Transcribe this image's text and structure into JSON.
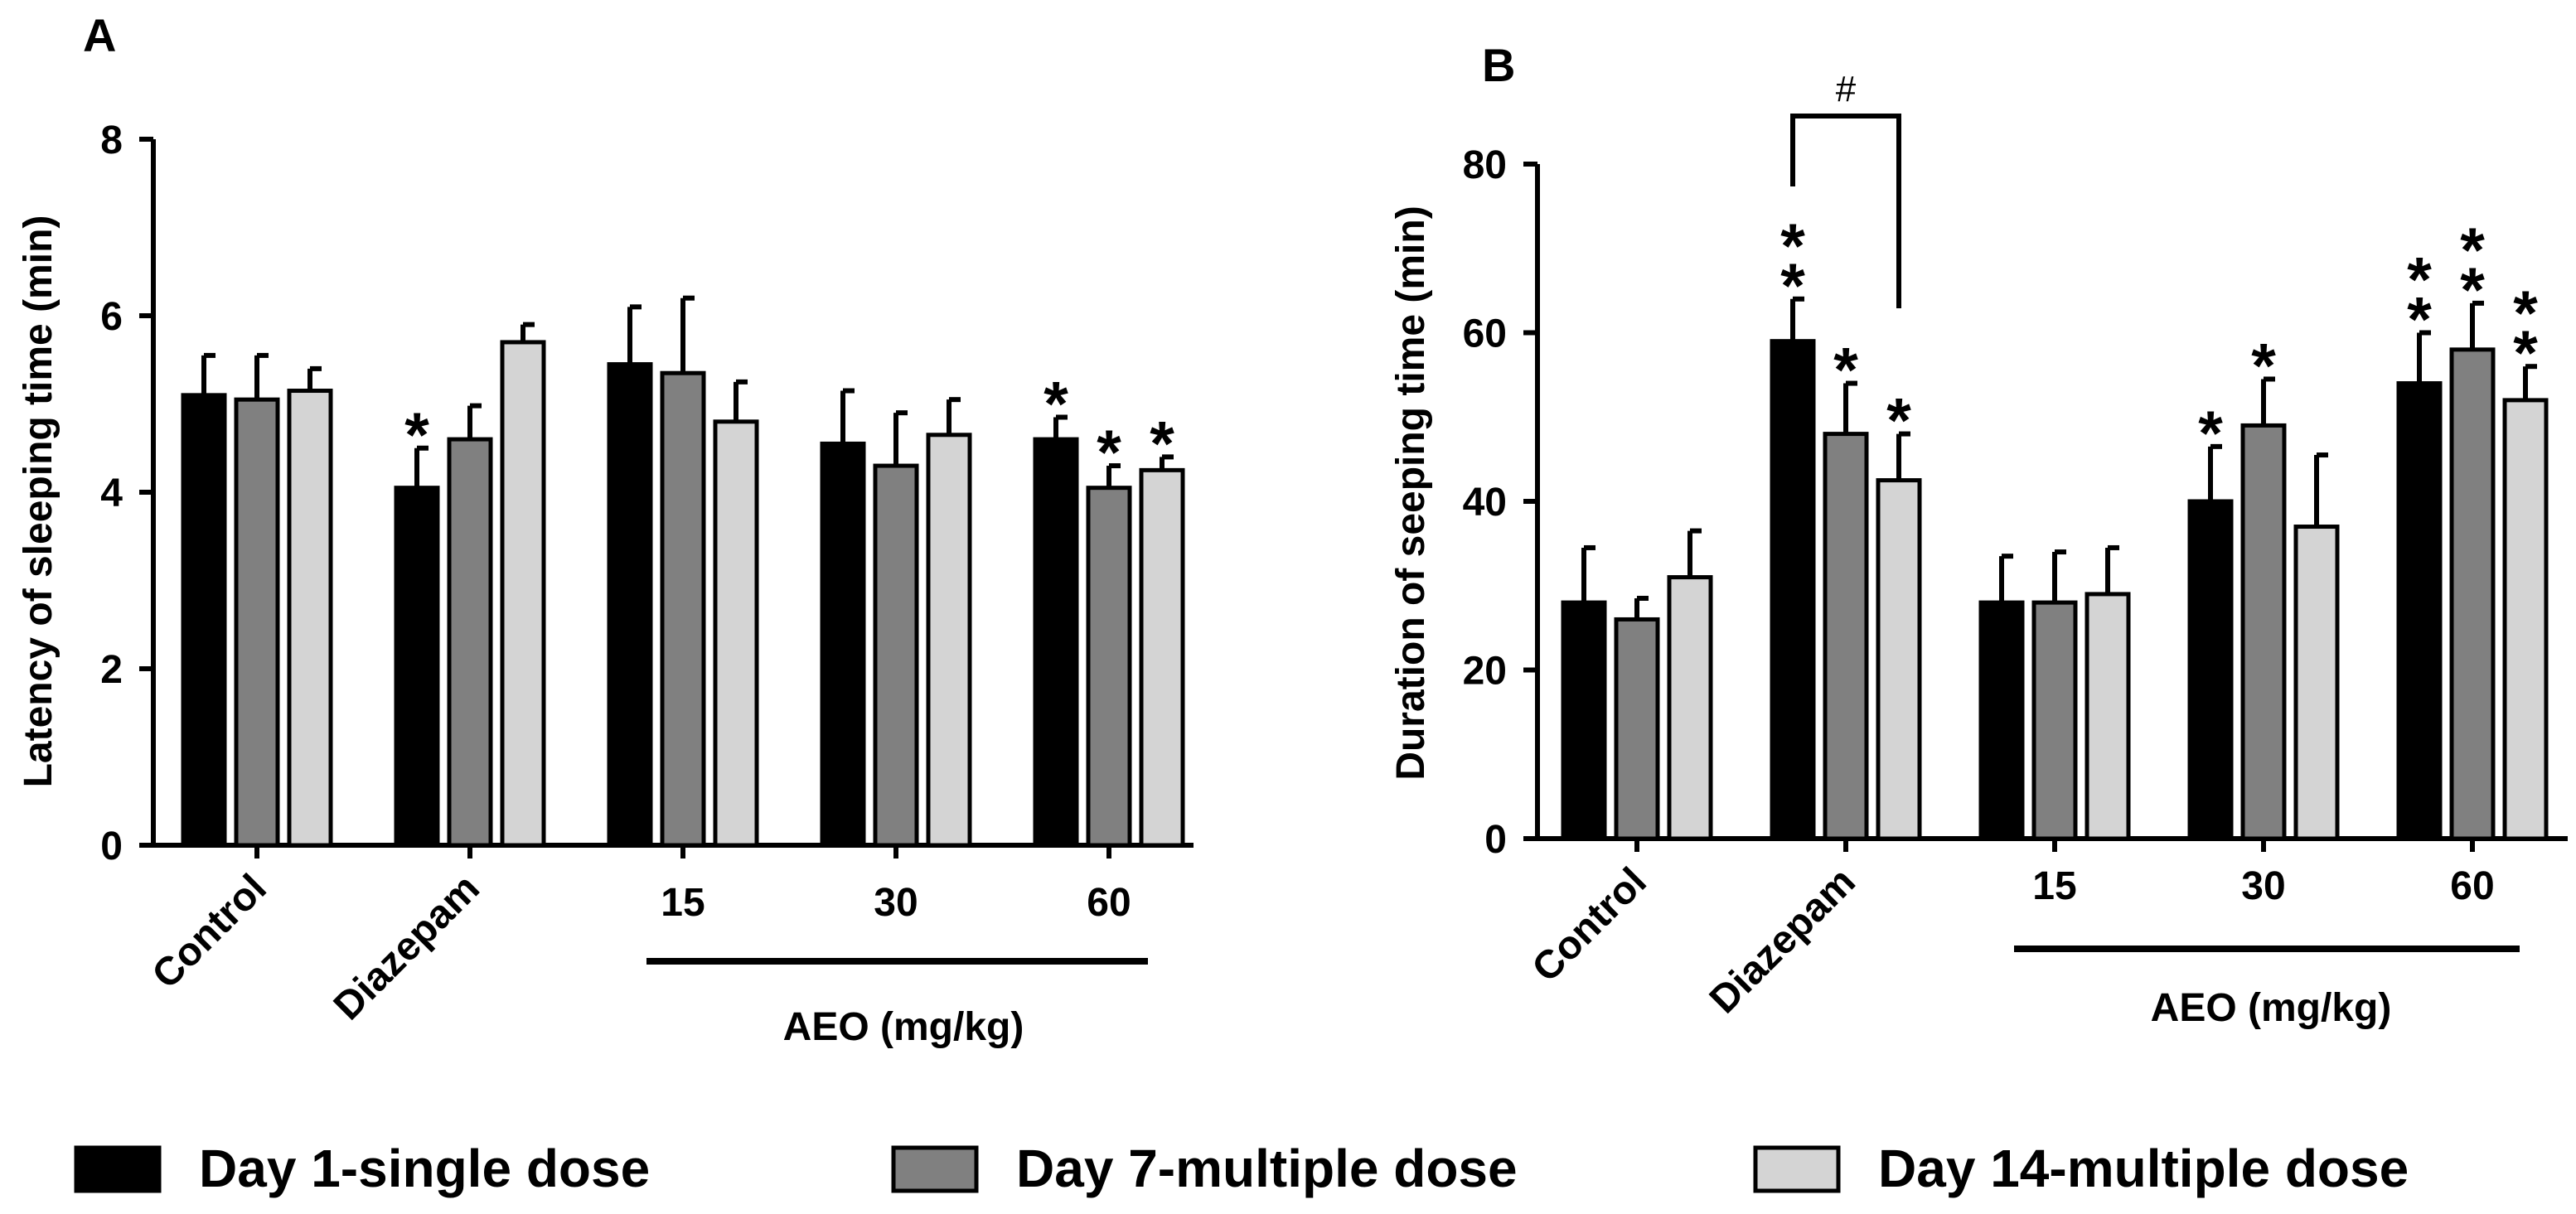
{
  "figure": {
    "legend": [
      {
        "label": "Day 1-single dose",
        "color": "#000000"
      },
      {
        "label": "Day 7-multiple dose",
        "color": "#808080"
      },
      {
        "label": "Day 14-multiple dose",
        "color": "#d4d4d4"
      }
    ],
    "group_label": "AEO (mg/kg)"
  },
  "chart_data": [
    {
      "type": "bar",
      "panel": "A",
      "ylabel": "Latency of sleeping time (min)",
      "xlabel": "AEO (mg/kg)",
      "ylim": [
        0,
        8
      ],
      "yticks": [
        0,
        2,
        4,
        6,
        8
      ],
      "categories": [
        "Control",
        "Diazepam",
        "15",
        "30",
        "60"
      ],
      "series": [
        {
          "name": "Day 1-single dose",
          "values": [
            5.1,
            4.05,
            5.45,
            4.55,
            4.6
          ],
          "errors": [
            0.45,
            0.45,
            0.65,
            0.6,
            0.25
          ]
        },
        {
          "name": "Day 7-multiple dose",
          "values": [
            5.05,
            4.6,
            5.35,
            4.3,
            4.05
          ],
          "errors": [
            0.5,
            0.38,
            0.85,
            0.6,
            0.25
          ]
        },
        {
          "name": "Day 14-multiple dose",
          "values": [
            5.15,
            5.7,
            4.8,
            4.65,
            4.25
          ],
          "errors": [
            0.25,
            0.2,
            0.45,
            0.4,
            0.15
          ]
        }
      ],
      "significance": [
        {
          "category": "Diazepam",
          "series": "Day 1-single dose",
          "mark": "*"
        },
        {
          "category": "60",
          "series": "Day 1-single dose",
          "mark": "*"
        },
        {
          "category": "60",
          "series": "Day 7-multiple dose",
          "mark": "*"
        },
        {
          "category": "60",
          "series": "Day 14-multiple dose",
          "mark": "*"
        }
      ]
    },
    {
      "type": "bar",
      "panel": "B",
      "ylabel": "Duration of  seeping time (min)",
      "xlabel": "AEO (mg/kg)",
      "ylim": [
        0,
        80
      ],
      "yticks": [
        0,
        20,
        40,
        60,
        80
      ],
      "categories": [
        "Control",
        "Diazepam",
        "15",
        "30",
        "60"
      ],
      "series": [
        {
          "name": "Day 1-single dose",
          "values": [
            28,
            59,
            28,
            40,
            54
          ],
          "errors": [
            6.5,
            5,
            5.5,
            6.5,
            6
          ]
        },
        {
          "name": "Day 7-multiple dose",
          "values": [
            26,
            48,
            28,
            49,
            58
          ],
          "errors": [
            2.5,
            6,
            6,
            5.5,
            5.5
          ]
        },
        {
          "name": "Day 14-multiple dose",
          "values": [
            31,
            42.5,
            29,
            37,
            52
          ],
          "errors": [
            5.5,
            5.5,
            5.5,
            8.5,
            4
          ]
        }
      ],
      "significance": [
        {
          "category": "Diazepam",
          "series": "Day 1-single dose",
          "mark": "**"
        },
        {
          "category": "Diazepam",
          "series": "Day 7-multiple dose",
          "mark": "*"
        },
        {
          "category": "Diazepam",
          "series": "Day 14-multiple dose",
          "mark": "*"
        },
        {
          "category": "30",
          "series": "Day 1-single dose",
          "mark": "*"
        },
        {
          "category": "30",
          "series": "Day 7-multiple dose",
          "mark": "*"
        },
        {
          "category": "60",
          "series": "Day 1-single dose",
          "mark": "**"
        },
        {
          "category": "60",
          "series": "Day 7-multiple dose",
          "mark": "**"
        },
        {
          "category": "60",
          "series": "Day 14-multiple dose",
          "mark": "**"
        }
      ],
      "bracket": {
        "from": "Day 1-single dose",
        "to": "Day 14-multiple dose",
        "category": "Diazepam",
        "mark": "#"
      }
    }
  ]
}
